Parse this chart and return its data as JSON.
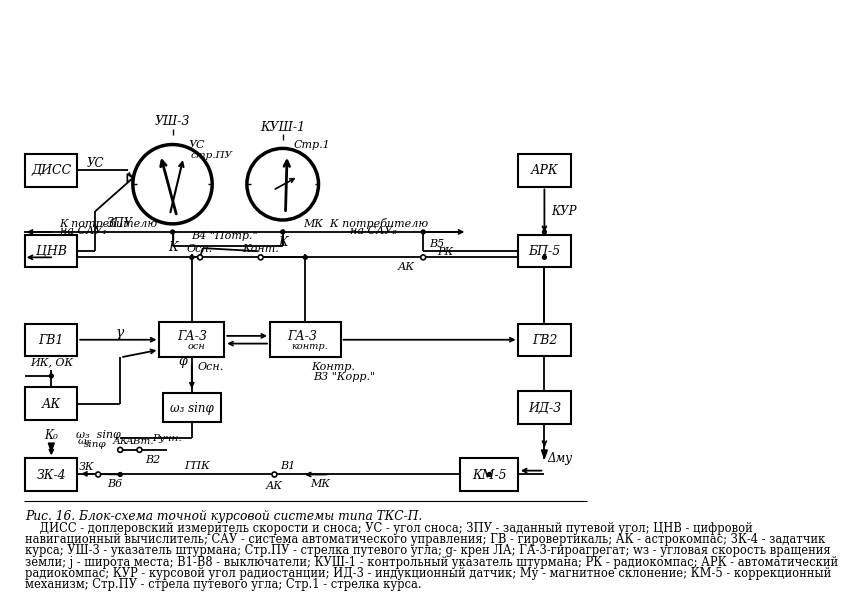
{
  "fig_width": 10.72,
  "fig_height": 7.67,
  "bg_color": "#ffffff",
  "caption": "Рис. 16. Блок-схема точной курсовой системы типа ТКС-П.",
  "desc1": "    ДИСС - доплеровский измеритель скорости и сноса; УС - угол сноса; ЗПУ - заданный путевой угол; ЦНВ - цифровой",
  "desc2": "навигационный вычислитель; САУ - система автоматического управления; ГВ - гировертикаль; АК - астрокомпас; ЗК-4 - задатчик",
  "desc3": "курса; УШ-3 - указатель штурмана; Стр.ПУ - стрелка путевого угла; g- крен ЛА; ГА-3-гироагрегат; wз - угловая скорость вращения",
  "desc4": "земли; j - широта места; В1-В8 - выключатели; КУШ-1 - контрольный указатель штурмана; РК - радиокомпас; АРК - автоматический",
  "desc5": "радиокомпас; КУР - курсовой угол радиостанции; ИД-3 - индукционный датчик; Му - магнитное склонение; КМ-5 - коррекционный",
  "desc6": "механизм; Стр.ПУ - стрела путевого угла; Стр.1 - стрелка курса."
}
